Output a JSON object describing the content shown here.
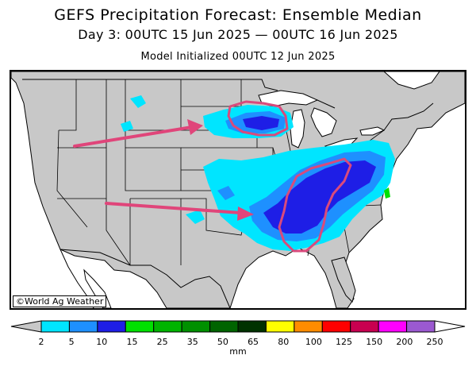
{
  "header": {
    "title": "GEFS Precipitation Forecast: Ensemble Median",
    "subtitle": "Day 3: 00UTC 15 Jun 2025 — 00UTC 16 Jun 2025",
    "init": "Model Initialized 00UTC 12 Jun 2025"
  },
  "map": {
    "credit": "©World Ag Weather",
    "land_color": "#c8c8c8",
    "water_color": "#ffffff",
    "highlight_color": "#d94a7c",
    "arrow_color": "#e0457a"
  },
  "colorbar": {
    "unit": "mm",
    "ticks": [
      "2",
      "5",
      "10",
      "15",
      "25",
      "35",
      "50",
      "65",
      "80",
      "100",
      "125",
      "150",
      "200",
      "250"
    ],
    "colors": [
      "#00e5ff",
      "#1e90ff",
      "#1e1ee6",
      "#00e000",
      "#00b400",
      "#009000",
      "#006400",
      "#003200",
      "#ffff00",
      "#ff8c00",
      "#ff0000",
      "#c80050",
      "#ff00ff",
      "#9b59d0"
    ],
    "below_color": "#c8c8c8",
    "above_color": "#ffffff"
  }
}
